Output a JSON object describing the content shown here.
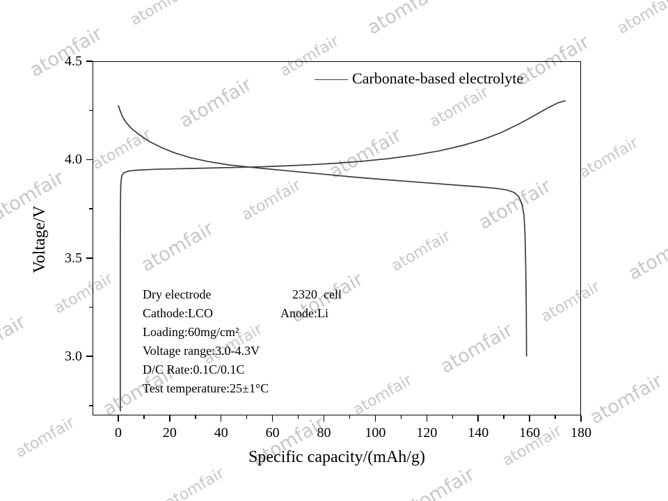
{
  "watermark": {
    "text": "atomfair",
    "color": "#c7c7c7",
    "angle_deg": -30
  },
  "chart_data": {
    "type": "line",
    "title": "",
    "xlabel": "Specific capacity/(mAh/g)",
    "ylabel": "Voltage/V",
    "xlim": [
      -10,
      180
    ],
    "ylim": [
      2.7,
      4.5
    ],
    "grid": false,
    "line_color": "#3b3b3b",
    "x_ticks": [
      0,
      20,
      40,
      60,
      80,
      100,
      120,
      140,
      160,
      180
    ],
    "x_minor_ticks": [
      10,
      30,
      50,
      70,
      90,
      110,
      130,
      150,
      170
    ],
    "y_ticks": [
      "3.0",
      "3.5",
      "4.0",
      "4.5"
    ],
    "y_tick_values": [
      3.0,
      3.5,
      4.0,
      4.5
    ],
    "y_minor_ticks": [
      2.75,
      3.25,
      3.75,
      4.25
    ],
    "legend": {
      "position": "top-inside",
      "entries": [
        {
          "label": "Carbonate-based electrolyte",
          "color": "#3b3b3b"
        }
      ]
    },
    "series": [
      {
        "name": "charge",
        "points": [
          [
            0.8,
            2.72
          ],
          [
            0.8,
            3.55
          ],
          [
            0.85,
            3.78
          ],
          [
            1.0,
            3.875
          ],
          [
            1.3,
            3.915
          ],
          [
            2,
            3.932
          ],
          [
            4,
            3.942
          ],
          [
            8,
            3.947
          ],
          [
            15,
            3.951
          ],
          [
            25,
            3.954
          ],
          [
            35,
            3.957
          ],
          [
            45,
            3.96
          ],
          [
            54,
            3.963
          ],
          [
            65,
            3.968
          ],
          [
            75,
            3.974
          ],
          [
            85,
            3.982
          ],
          [
            95,
            3.992
          ],
          [
            105,
            4.005
          ],
          [
            115,
            4.022
          ],
          [
            125,
            4.045
          ],
          [
            134,
            4.072
          ],
          [
            142,
            4.103
          ],
          [
            149,
            4.138
          ],
          [
            156,
            4.182
          ],
          [
            162,
            4.225
          ],
          [
            167,
            4.262
          ],
          [
            171,
            4.288
          ],
          [
            174,
            4.3
          ]
        ]
      },
      {
        "name": "discharge",
        "points": [
          [
            0,
            4.276
          ],
          [
            0.7,
            4.25
          ],
          [
            1.5,
            4.222
          ],
          [
            3,
            4.19
          ],
          [
            5,
            4.16
          ],
          [
            8,
            4.128
          ],
          [
            12,
            4.093
          ],
          [
            17,
            4.06
          ],
          [
            22,
            4.034
          ],
          [
            28,
            4.01
          ],
          [
            35,
            3.99
          ],
          [
            43,
            3.973
          ],
          [
            54,
            3.958
          ],
          [
            65,
            3.944
          ],
          [
            78,
            3.928
          ],
          [
            92,
            3.911
          ],
          [
            105,
            3.897
          ],
          [
            118,
            3.884
          ],
          [
            130,
            3.872
          ],
          [
            140,
            3.862
          ],
          [
            147,
            3.854
          ],
          [
            151,
            3.846
          ],
          [
            154,
            3.833
          ],
          [
            155.8,
            3.812
          ],
          [
            157,
            3.776
          ],
          [
            157.8,
            3.72
          ],
          [
            158.2,
            3.62
          ],
          [
            158.5,
            3.45
          ],
          [
            158.7,
            3.25
          ],
          [
            158.8,
            3.0
          ]
        ]
      }
    ]
  },
  "annotation": {
    "lines": [
      {
        "left": "Dry electrode",
        "right": "2320  cell"
      },
      {
        "left": "Cathode:LCO",
        "right": "Anode:Li"
      },
      {
        "left": "Loading:60mg/cm²",
        "right": ""
      },
      {
        "left": "Voltage range:3.0-4.3V",
        "right": ""
      },
      {
        "left": "D/C Rate:0.1C/0.1C",
        "right": ""
      },
      {
        "left": "Test temperature:25±1°C",
        "right": ""
      }
    ]
  }
}
